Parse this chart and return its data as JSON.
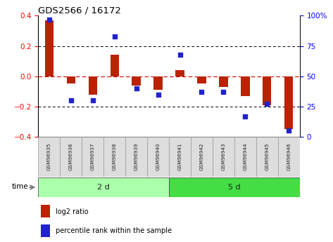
{
  "title": "GDS2566 / 16172",
  "samples": [
    "GSM96935",
    "GSM96936",
    "GSM96937",
    "GSM96938",
    "GSM96939",
    "GSM96940",
    "GSM96941",
    "GSM96942",
    "GSM96943",
    "GSM96944",
    "GSM96945",
    "GSM96946"
  ],
  "log2_ratio": [
    0.37,
    -0.05,
    -0.12,
    0.14,
    -0.06,
    -0.09,
    0.04,
    -0.05,
    -0.07,
    -0.13,
    -0.19,
    -0.35
  ],
  "percentile_rank": [
    97,
    30,
    30,
    83,
    40,
    35,
    68,
    37,
    37,
    17,
    27,
    5
  ],
  "groups": [
    {
      "label": "2 d",
      "start": 0,
      "end": 6,
      "color": "#AAFFAA"
    },
    {
      "label": "5 d",
      "start": 6,
      "end": 12,
      "color": "#44DD44"
    }
  ],
  "ylim_left": [
    -0.4,
    0.4
  ],
  "ylim_right": [
    0,
    100
  ],
  "yticks_left": [
    -0.4,
    -0.2,
    0.0,
    0.2,
    0.4
  ],
  "yticks_right": [
    0,
    25,
    50,
    75,
    100
  ],
  "ytick_labels_right": [
    "0",
    "25",
    "50",
    "75",
    "100%"
  ],
  "bar_color": "#BB2200",
  "dot_color": "#2222CC",
  "zero_line_color": "#CC0000",
  "grid_color": "#000000",
  "background_color": "#FFFFFF",
  "time_label": "time",
  "legend_items": [
    {
      "label": "log2 ratio",
      "color": "#BB2200"
    },
    {
      "label": "percentile rank within the sample",
      "color": "#2222CC"
    }
  ],
  "fig_width": 4.73,
  "fig_height": 3.45,
  "dpi": 100
}
